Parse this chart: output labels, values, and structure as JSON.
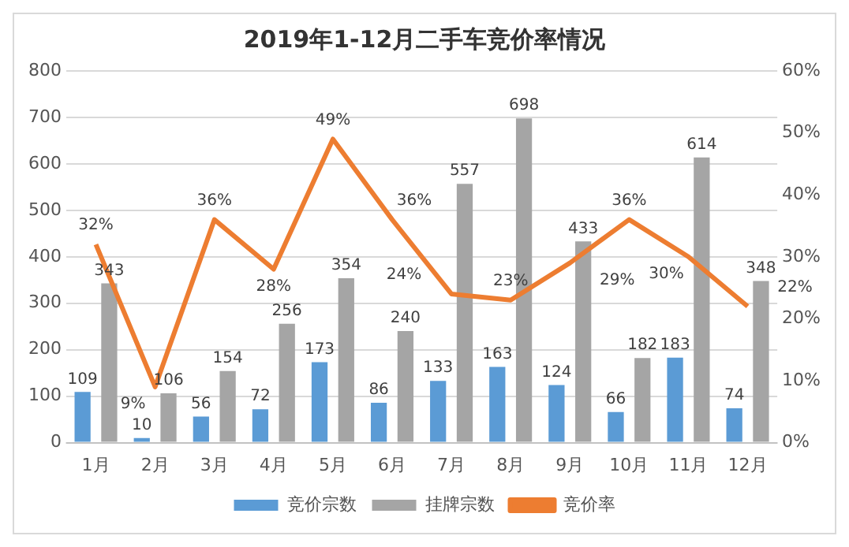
{
  "chart_data": {
    "type": "bar",
    "title": "2019年1-12月二手车竞价率情况",
    "categories": [
      "1月",
      "2月",
      "3月",
      "4月",
      "5月",
      "6月",
      "7月",
      "8月",
      "9月",
      "10月",
      "11月",
      "12月"
    ],
    "series": [
      {
        "name": "竞价宗数",
        "color": "#5b9bd5",
        "values": [
          109,
          10,
          56,
          72,
          173,
          86,
          133,
          163,
          124,
          66,
          183,
          74
        ]
      },
      {
        "name": "挂牌宗数",
        "color": "#a5a5a5",
        "values": [
          343,
          106,
          154,
          256,
          354,
          240,
          557,
          698,
          433,
          182,
          614,
          348
        ]
      },
      {
        "name": "竞价率",
        "type": "line",
        "axis": "y2",
        "color": "#ed7d31",
        "values": [
          32,
          9,
          36,
          28,
          49,
          36,
          24,
          23,
          29,
          36,
          30,
          22
        ],
        "value_labels": [
          "32%",
          "9%",
          "36%",
          "28%",
          "49%",
          "36%",
          "24%",
          "23%",
          "29%",
          "36%",
          "30%",
          "22%"
        ]
      }
    ],
    "ylim": [
      0,
      800
    ],
    "yticks": [
      0,
      100,
      200,
      300,
      400,
      500,
      600,
      700,
      800
    ],
    "y2lim": [
      0,
      60
    ],
    "y2ticks": [
      {
        "value": 0,
        "label": "0%"
      },
      {
        "value": 10,
        "label": "10%"
      },
      {
        "value": 20,
        "label": "20%"
      },
      {
        "value": 30,
        "label": "30%"
      },
      {
        "value": 40,
        "label": "40%"
      },
      {
        "value": 50,
        "label": "50%"
      },
      {
        "value": 60,
        "label": "60%"
      }
    ],
    "data_labels": true,
    "grid": "y",
    "legend": "bottom",
    "marker": "none",
    "line_style": "solid"
  }
}
